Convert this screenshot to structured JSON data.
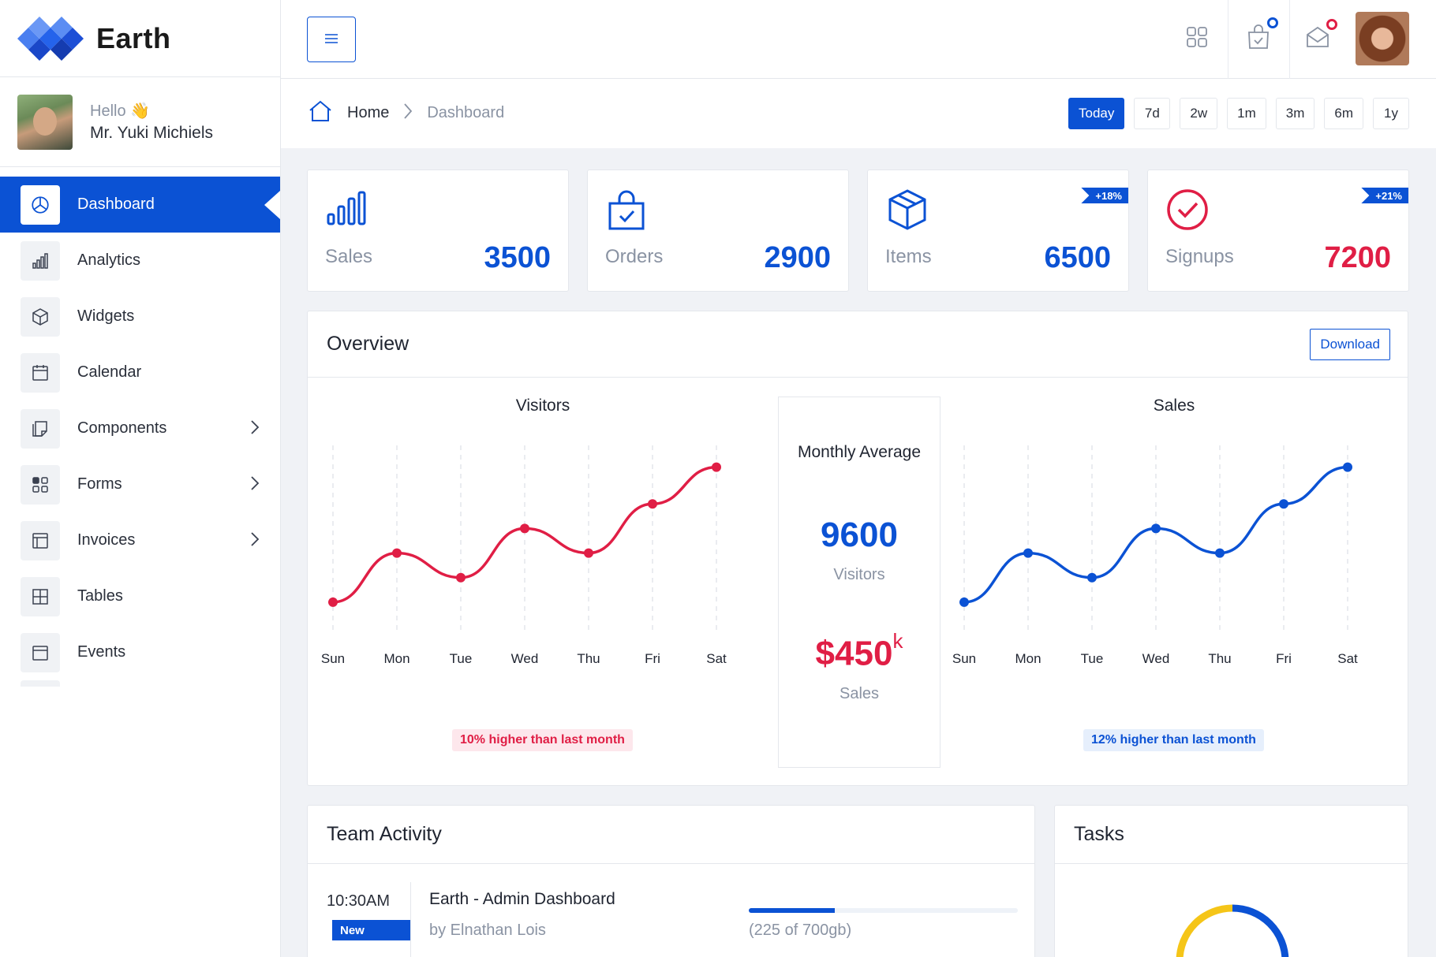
{
  "brand": {
    "name": "Earth"
  },
  "user": {
    "greeting": "Hello 👋",
    "name": "Mr. Yuki Michiels"
  },
  "sidebar": {
    "items": [
      {
        "label": "Dashboard",
        "icon": "pie-chart-icon",
        "active": true,
        "has_children": false
      },
      {
        "label": "Analytics",
        "icon": "bar-chart-icon",
        "active": false,
        "has_children": false
      },
      {
        "label": "Widgets",
        "icon": "box-icon",
        "active": false,
        "has_children": false
      },
      {
        "label": "Calendar",
        "icon": "calendar-icon",
        "active": false,
        "has_children": false
      },
      {
        "label": "Components",
        "icon": "sticky-note-icon",
        "active": false,
        "has_children": true
      },
      {
        "label": "Forms",
        "icon": "grid-check-icon",
        "active": false,
        "has_children": true
      },
      {
        "label": "Invoices",
        "icon": "layout-icon",
        "active": false,
        "has_children": true
      },
      {
        "label": "Tables",
        "icon": "table-icon",
        "active": false,
        "has_children": false
      },
      {
        "label": "Events",
        "icon": "calendar-icon",
        "active": false,
        "has_children": false
      }
    ]
  },
  "topbar": {
    "icons": [
      "menu-icon",
      "apps-icon",
      "shopping-bag-icon",
      "mail-icon"
    ]
  },
  "breadcrumb": {
    "home": "Home",
    "current": "Dashboard"
  },
  "ranges": [
    "Today",
    "7d",
    "2w",
    "1m",
    "3m",
    "6m",
    "1y"
  ],
  "stats": [
    {
      "label": "Sales",
      "value": "3500",
      "icon": "bar-chart-icon",
      "badge": "",
      "color": "#0b52d4"
    },
    {
      "label": "Orders",
      "value": "2900",
      "icon": "shopping-bag-icon",
      "badge": "",
      "color": "#0b52d4"
    },
    {
      "label": "Items",
      "value": "6500",
      "icon": "box-icon",
      "badge": "+18%",
      "color": "#0b52d4"
    },
    {
      "label": "Signups",
      "value": "7200",
      "icon": "check-circle-icon",
      "badge": "+21%",
      "color": "#e01e45"
    }
  ],
  "overview": {
    "title": "Overview",
    "download_label": "Download",
    "visitors_pill": "10% higher than last month",
    "sales_pill": "12% higher than last month",
    "monthly_average": {
      "title": "Monthly Average",
      "visitors_value": "9600",
      "visitors_label": "Visitors",
      "sales_value": "$450",
      "sales_suffix": "k",
      "sales_label": "Sales"
    }
  },
  "chart_data": [
    {
      "type": "line",
      "title": "Visitors",
      "categories": [
        "Sun",
        "Mon",
        "Tue",
        "Wed",
        "Thu",
        "Fri",
        "Sat"
      ],
      "values": [
        1,
        3,
        2,
        4,
        3,
        5,
        6.5
      ],
      "ylim": [
        0,
        7
      ],
      "color": "#e01e45",
      "grid": "vertical-dashed"
    },
    {
      "type": "line",
      "title": "Sales",
      "categories": [
        "Sun",
        "Mon",
        "Tue",
        "Wed",
        "Thu",
        "Fri",
        "Sat"
      ],
      "values": [
        1,
        3,
        2,
        4,
        3,
        5,
        6.5
      ],
      "ylim": [
        0,
        7
      ],
      "color": "#0b52d4",
      "grid": "vertical-dashed"
    }
  ],
  "team_activity": {
    "title": "Team Activity",
    "items": [
      {
        "time": "10:30AM",
        "badge": "New",
        "title": "Earth - Admin Dashboard",
        "by": "by Elnathan Lois",
        "progress": 0.32,
        "size": "(225 of 700gb)"
      }
    ]
  },
  "tasks": {
    "title": "Tasks",
    "donut_colors": [
      "#0b52d4",
      "#f5c518"
    ]
  },
  "colors": {
    "primary": "#0b52d4",
    "danger": "#e01e45",
    "muted": "#8a93a3"
  }
}
